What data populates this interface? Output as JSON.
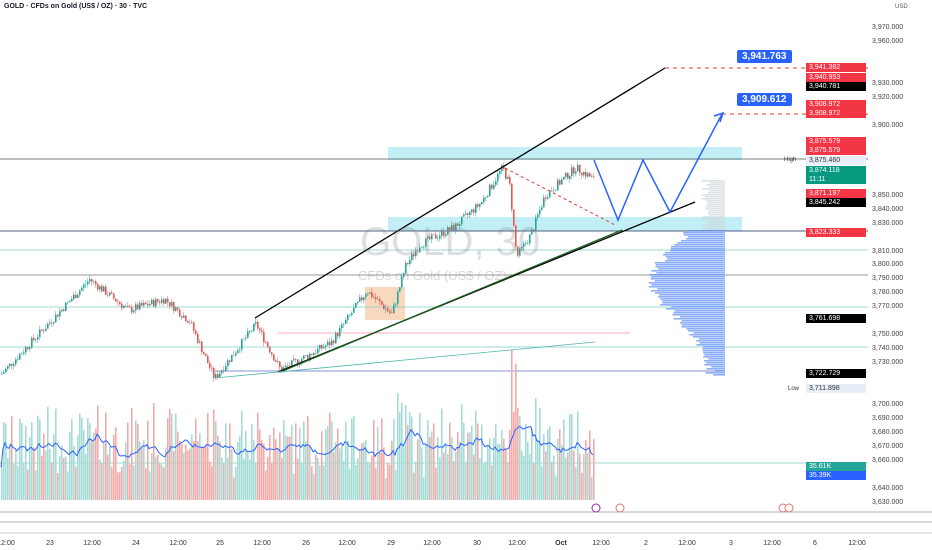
{
  "header": {
    "title": "GOLD · CFDs on Gold (US$ / OZ) · 30 · TVC",
    "currency": "USD"
  },
  "watermark": {
    "symbol": "GOLD, 30",
    "description": "CFDs on Gold (US$ / OZ)"
  },
  "colors": {
    "up": "#26a69a",
    "down": "#ef5350",
    "accent": "#2962ff",
    "zone": "#b2ebf2"
  },
  "chart_data": {
    "type": "candlestick",
    "y_ticks": [
      3970,
      3960,
      3930,
      3920,
      3900,
      3850,
      3840,
      3830,
      3810,
      3800,
      3790,
      3780,
      3770,
      3750,
      3740,
      3730,
      3700,
      3690,
      3680,
      3670,
      3660,
      3640,
      3630
    ],
    "ylim": [
      3630,
      3980
    ],
    "x_ticks": [
      "12:00",
      "23",
      "12:00",
      "24",
      "12:00",
      "25",
      "12:00",
      "26",
      "12:00",
      "29",
      "12:00",
      "30",
      "12:00",
      "Oct",
      "12:00",
      "2",
      "12:00",
      "3",
      "12:00",
      "6",
      "12:00"
    ],
    "price_path": [
      [
        "09-22 10:00",
        3722
      ],
      [
        "09-23 11:00",
        3790
      ],
      [
        "09-23 22:00",
        3768
      ],
      [
        "09-24 08:00",
        3776
      ],
      [
        "09-24 15:00",
        3760
      ],
      [
        "09-24 22:00",
        3719
      ],
      [
        "09-25 10:00",
        3758
      ],
      [
        "09-25 17:00",
        3725
      ],
      [
        "09-26 07:00",
        3745
      ],
      [
        "09-26 17:00",
        3782
      ],
      [
        "09-29 00:00",
        3765
      ],
      [
        "09-29 04:00",
        3800
      ],
      [
        "09-29 08:00",
        3815
      ],
      [
        "09-29 18:00",
        3828
      ],
      [
        "09-30 01:00",
        3845
      ],
      [
        "09-30 07:00",
        3870
      ],
      [
        "09-30 09:00",
        3858
      ],
      [
        "09-30 11:00",
        3806
      ],
      [
        "09-30 15:00",
        3822
      ],
      [
        "09-30 19:00",
        3850
      ],
      [
        "10-01 04:00",
        3870
      ],
      [
        "10-01 09:00",
        3862
      ]
    ],
    "price_labels": [
      {
        "text": "3,941.382",
        "price": 3941.382,
        "bg": "#f23645",
        "fg": "#fff"
      },
      {
        "text": "3,940.953",
        "price": 3940.953,
        "bg": "#f23645",
        "fg": "#fff",
        "offset": 1
      },
      {
        "text": "3,940.781",
        "price": 3940.781,
        "bg": "#000",
        "fg": "#fff",
        "offset": 2
      },
      {
        "text": "3,908.972",
        "price": 3908.972,
        "bg": "#f23645",
        "fg": "#fff",
        "offset": -1
      },
      {
        "text": "3,908.972",
        "price": 3908.972,
        "bg": "#f23645",
        "fg": "#fff",
        "offset": 0
      },
      {
        "text": "3,875.579",
        "price": 3875.579,
        "bg": "#f23645",
        "fg": "#fff",
        "offset": -2
      },
      {
        "text": "3,875.579",
        "price": 3875.579,
        "bg": "#f23645",
        "fg": "#fff",
        "offset": -1
      },
      {
        "text": "3,875.460",
        "price": 3875.46,
        "bg": "#e8eef7",
        "fg": "#333",
        "offset": 0
      },
      {
        "text": "3,874.118",
        "price": 3874.118,
        "bg": "#089981",
        "fg": "#fff",
        "offset": 1
      },
      {
        "text": "11:11",
        "price": 3874.118,
        "bg": "#089981",
        "fg": "#fff",
        "offset": 2
      },
      {
        "text": "3,871.197",
        "price": 3871.197,
        "bg": "#f23645",
        "fg": "#fff",
        "offset": 3
      },
      {
        "text": "3,845.242",
        "price": 3845.242,
        "bg": "#000",
        "fg": "#fff",
        "offset": 0
      },
      {
        "text": "3,823.333",
        "price": 3823.333,
        "bg": "#f23645",
        "fg": "#fff",
        "offset": 0
      },
      {
        "text": "3,761.698",
        "price": 3761.698,
        "bg": "#000",
        "fg": "#fff",
        "offset": 0
      },
      {
        "text": "3,722.729",
        "price": 3722.729,
        "bg": "#000",
        "fg": "#fff",
        "offset": 0
      },
      {
        "text": "3,711.898",
        "price": 3711.898,
        "bg": "#e8eef7",
        "fg": "#333",
        "offset": 0
      },
      {
        "text": "35.61K",
        "price": 3656,
        "bg": "#26a69a",
        "fg": "#fff",
        "offset": 0
      },
      {
        "text": "35.39K",
        "price": 3656,
        "bg": "#2962ff",
        "fg": "#fff",
        "offset": 1
      }
    ],
    "high_label": "High",
    "low_label": "Low",
    "targets": [
      "3,941.763",
      "3,909.612"
    ]
  }
}
